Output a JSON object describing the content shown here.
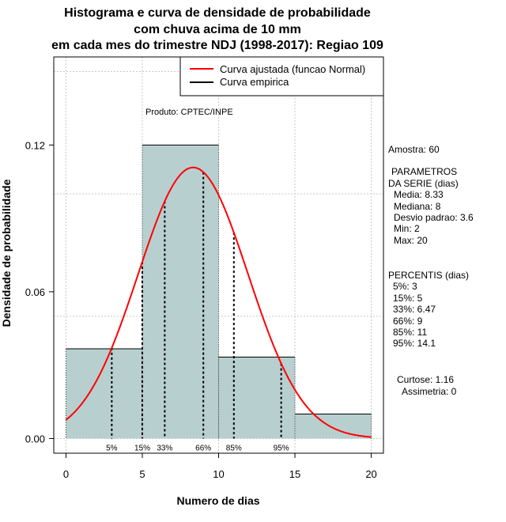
{
  "chart_data": {
    "type": "bar",
    "title": [
      "Histograma e curva de densidade de probabilidade",
      "com chuva acima de 10 mm",
      "em cada mes do trimestre NDJ (1998-2017): Regiao 109"
    ],
    "xlabel": "Numero de dias",
    "ylabel": "Densidade de probabilidade",
    "xlim": [
      -0.8,
      20.8
    ],
    "ylim": [
      -0.006,
      0.156
    ],
    "x_ticks": [
      0,
      5,
      10,
      15,
      20
    ],
    "x_tick_labels": [
      "0",
      "5",
      "10",
      "15",
      "20"
    ],
    "y_ticks": [
      0.0,
      0.06,
      0.12
    ],
    "y_tick_labels": [
      "0.00",
      "0.06",
      "0.12"
    ],
    "grid_x": [
      0,
      5,
      10,
      15,
      20
    ],
    "grid_y": [
      0.0,
      0.05,
      0.1,
      0.15
    ],
    "bins": [
      {
        "start": 0,
        "end": 5,
        "density": 0.0367
      },
      {
        "start": 5,
        "end": 10,
        "density": 0.12
      },
      {
        "start": 10,
        "end": 15,
        "density": 0.0333
      },
      {
        "start": 15,
        "end": 20,
        "density": 0.01
      }
    ],
    "normal_curve": {
      "mean": 8.33,
      "sd": 3.6,
      "x_range": [
        0,
        20
      ],
      "color": "#ff0000"
    },
    "percentile_lines": [
      {
        "label": "5%",
        "x": 3
      },
      {
        "label": "15%",
        "x": 5
      },
      {
        "label": "33%",
        "x": 6.47
      },
      {
        "label": "66%",
        "x": 9
      },
      {
        "label": "85%",
        "x": 11
      },
      {
        "label": "95%",
        "x": 14.1
      }
    ],
    "legend": {
      "position": "top-right",
      "items": [
        {
          "label": "Curva ajustada (funcao Normal)",
          "color": "#ff0000"
        },
        {
          "label": "Curva empirica",
          "color": "#000000"
        }
      ]
    },
    "annotation": "Produto: CPTEC/INPE",
    "bar_color": "#b8cfcf"
  },
  "side_panel": {
    "sample": "Amostra: 60",
    "params_title_1": "PARAMETROS",
    "params_title_2": "DA SERIE (dias)",
    "params": [
      "Media: 8.33",
      "Mediana: 8",
      "Desvio padrao: 3.6",
      "Min: 2",
      "Max: 20"
    ],
    "percentis_title": "PERCENTIS (dias)",
    "percentis": [
      "5%: 3",
      "15%: 5",
      "33%: 6.47",
      "66%: 9",
      "85%: 11",
      "95%: 14.1"
    ],
    "curtose": "Curtose: 1.16",
    "assimetria": "Assimetria: 0"
  }
}
